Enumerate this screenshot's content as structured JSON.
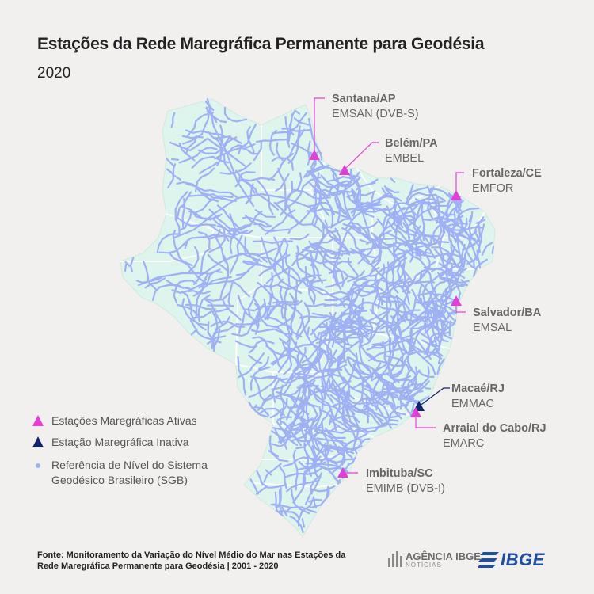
{
  "title": "Estações da Rede Maregráfica Permanente para Geodésia",
  "subtitle": "2020",
  "stations": [
    {
      "name": "Santana/AP",
      "code": "EMSAN (DVB-S)",
      "status": "active"
    },
    {
      "name": "Belém/PA",
      "code": "EMBEL",
      "status": "active"
    },
    {
      "name": "Fortaleza/CE",
      "code": "EMFOR",
      "status": "active"
    },
    {
      "name": "Salvador/BA",
      "code": "EMSAL",
      "status": "active"
    },
    {
      "name": "Macaé/RJ",
      "code": "EMMAC",
      "status": "inactive"
    },
    {
      "name": "Arraial do Cabo/RJ",
      "code": "EMARC",
      "status": "active"
    },
    {
      "name": "Imbituba/SC",
      "code": "EMIMB (DVB-I)",
      "status": "active"
    }
  ],
  "legend": {
    "active": "Estações Maregráficas Ativas",
    "inactive": "Estação Maregráfica Inativa",
    "reference": "Referência de Nível do Sistema Geodésico Brasileiro (SGB)"
  },
  "source": "Fonte: Monitoramento da Variação do Nível Médio do Mar nas Estações da Rede Maregráfica Permanente para Geodésia | 2001 - 2020",
  "logos": {
    "agencia_top": "AGÊNCIA IBGE",
    "agencia_bottom": "NOTÍCIAS",
    "ibge": "IBGE"
  },
  "colors": {
    "active": "#e23fd8",
    "inactive": "#12236b",
    "network": "#9fb1f4",
    "land": "#ddf5ec",
    "borders": "#ffffff"
  }
}
